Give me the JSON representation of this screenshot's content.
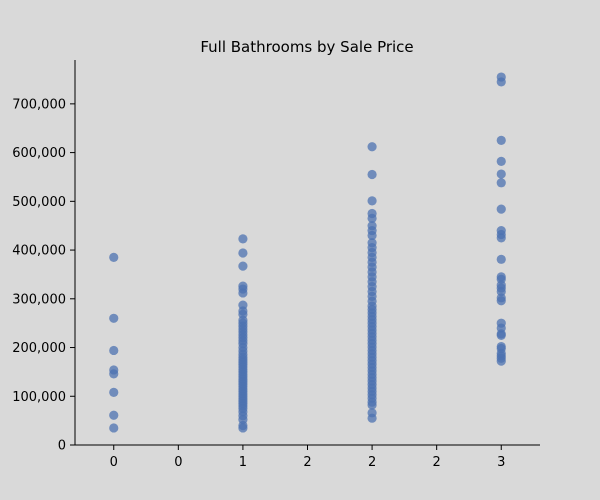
{
  "chart_data": {
    "type": "scatter",
    "title": "Full Bathrooms by Sale Price",
    "xlabel": "",
    "ylabel": "",
    "xlim": [
      -0.3,
      3.3
    ],
    "ylim": [
      0,
      790000
    ],
    "grid": false,
    "marker_color": "#4c72b0",
    "x_ticks": [
      {
        "value": 0,
        "label": "0"
      },
      {
        "value": 0.5,
        "label": "0"
      },
      {
        "value": 1,
        "label": "1"
      },
      {
        "value": 1.5,
        "label": "2"
      },
      {
        "value": 2,
        "label": "2"
      },
      {
        "value": 2.5,
        "label": "2"
      },
      {
        "value": 3,
        "label": "3"
      }
    ],
    "y_ticks": [
      {
        "value": 0,
        "label": "0"
      },
      {
        "value": 100000,
        "label": "100,000"
      },
      {
        "value": 200000,
        "label": "200,000"
      },
      {
        "value": 300000,
        "label": "300,000"
      },
      {
        "value": 400000,
        "label": "400,000"
      },
      {
        "value": 500000,
        "label": "500,000"
      },
      {
        "value": 600000,
        "label": "600,000"
      },
      {
        "value": 700000,
        "label": "700,000"
      }
    ],
    "series": [
      {
        "points": [
          [
            0,
            385000
          ],
          [
            0,
            260000
          ],
          [
            0,
            194000
          ],
          [
            0,
            154000
          ],
          [
            0,
            146000
          ],
          [
            0,
            108000
          ],
          [
            0,
            61000
          ],
          [
            0,
            35000
          ],
          [
            1,
            423000
          ],
          [
            1,
            394000
          ],
          [
            1,
            367000
          ],
          [
            1,
            326000
          ],
          [
            1,
            320000
          ],
          [
            1,
            312000
          ],
          [
            1,
            287000
          ],
          [
            1,
            275000
          ],
          [
            1,
            268000
          ],
          [
            1,
            256000
          ],
          [
            1,
            250000
          ],
          [
            1,
            244000
          ],
          [
            1,
            238000
          ],
          [
            1,
            232000
          ],
          [
            1,
            226000
          ],
          [
            1,
            220000
          ],
          [
            1,
            214000
          ],
          [
            1,
            208000
          ],
          [
            1,
            200000
          ],
          [
            1,
            193000
          ],
          [
            1,
            186000
          ],
          [
            1,
            180000
          ],
          [
            1,
            175000
          ],
          [
            1,
            170000
          ],
          [
            1,
            165000
          ],
          [
            1,
            160000
          ],
          [
            1,
            155000
          ],
          [
            1,
            150000
          ],
          [
            1,
            145000
          ],
          [
            1,
            140000
          ],
          [
            1,
            135000
          ],
          [
            1,
            130000
          ],
          [
            1,
            125000
          ],
          [
            1,
            120000
          ],
          [
            1,
            115000
          ],
          [
            1,
            110000
          ],
          [
            1,
            105000
          ],
          [
            1,
            100000
          ],
          [
            1,
            95000
          ],
          [
            1,
            90000
          ],
          [
            1,
            85000
          ],
          [
            1,
            80000
          ],
          [
            1,
            75000
          ],
          [
            1,
            68000
          ],
          [
            1,
            60000
          ],
          [
            1,
            52000
          ],
          [
            1,
            40000
          ],
          [
            1,
            35000
          ],
          [
            2,
            612000
          ],
          [
            2,
            555000
          ],
          [
            2,
            501000
          ],
          [
            2,
            475000
          ],
          [
            2,
            465000
          ],
          [
            2,
            450000
          ],
          [
            2,
            440000
          ],
          [
            2,
            430000
          ],
          [
            2,
            415000
          ],
          [
            2,
            405000
          ],
          [
            2,
            395000
          ],
          [
            2,
            385000
          ],
          [
            2,
            375000
          ],
          [
            2,
            365000
          ],
          [
            2,
            355000
          ],
          [
            2,
            345000
          ],
          [
            2,
            335000
          ],
          [
            2,
            325000
          ],
          [
            2,
            315000
          ],
          [
            2,
            305000
          ],
          [
            2,
            295000
          ],
          [
            2,
            285000
          ],
          [
            2,
            278000
          ],
          [
            2,
            271000
          ],
          [
            2,
            264000
          ],
          [
            2,
            257000
          ],
          [
            2,
            250000
          ],
          [
            2,
            243000
          ],
          [
            2,
            236000
          ],
          [
            2,
            229000
          ],
          [
            2,
            222000
          ],
          [
            2,
            215000
          ],
          [
            2,
            208000
          ],
          [
            2,
            201000
          ],
          [
            2,
            194000
          ],
          [
            2,
            187000
          ],
          [
            2,
            180000
          ],
          [
            2,
            173000
          ],
          [
            2,
            166000
          ],
          [
            2,
            159000
          ],
          [
            2,
            152000
          ],
          [
            2,
            145000
          ],
          [
            2,
            138000
          ],
          [
            2,
            131000
          ],
          [
            2,
            124000
          ],
          [
            2,
            117000
          ],
          [
            2,
            110000
          ],
          [
            2,
            103000
          ],
          [
            2,
            96000
          ],
          [
            2,
            88000
          ],
          [
            2,
            82000
          ],
          [
            2,
            66000
          ],
          [
            2,
            55000
          ],
          [
            3,
            755000
          ],
          [
            3,
            745000
          ],
          [
            3,
            625000
          ],
          [
            3,
            582000
          ],
          [
            3,
            556000
          ],
          [
            3,
            538000
          ],
          [
            3,
            484000
          ],
          [
            3,
            440000
          ],
          [
            3,
            432000
          ],
          [
            3,
            425000
          ],
          [
            3,
            381000
          ],
          [
            3,
            345000
          ],
          [
            3,
            340000
          ],
          [
            3,
            328000
          ],
          [
            3,
            322000
          ],
          [
            3,
            315000
          ],
          [
            3,
            302000
          ],
          [
            3,
            296000
          ],
          [
            3,
            250000
          ],
          [
            3,
            240000
          ],
          [
            3,
            228000
          ],
          [
            3,
            225000
          ],
          [
            3,
            202000
          ],
          [
            3,
            198000
          ],
          [
            3,
            188000
          ],
          [
            3,
            183000
          ],
          [
            3,
            178000
          ],
          [
            3,
            172000
          ]
        ]
      }
    ]
  }
}
